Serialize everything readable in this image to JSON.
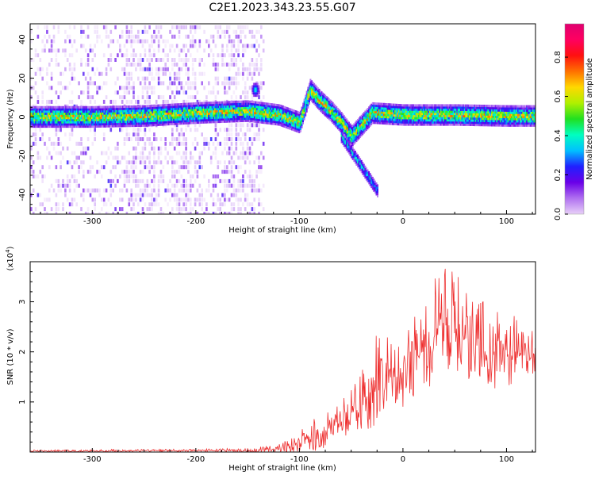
{
  "title": "C2E1.2023.343.23.55.G07",
  "chart_data": [
    {
      "type": "heatmap",
      "xlabel": "Height of straight line (km)",
      "ylabel": "Frequency (Hz)",
      "xlim": [
        -360,
        128
      ],
      "ylim": [
        -50,
        48
      ],
      "x_ticks": [
        -300,
        -200,
        -100,
        0,
        100
      ],
      "y_ticks": [
        -40,
        -20,
        0,
        20,
        40
      ],
      "colorbar": {
        "label": "Normalized spectral amplitude",
        "range": [
          0.0,
          0.97
        ],
        "ticks": [
          "0.0",
          "0.2",
          "0.4",
          "0.6",
          "0.8"
        ],
        "colormap": [
          "#e8d0f8",
          "#b070f0",
          "#6a00e8",
          "#2020ff",
          "#00c0ff",
          "#00ffc0",
          "#20e020",
          "#b0f000",
          "#ffd800",
          "#ff7000",
          "#ff1010",
          "#ff0060",
          "#e00070"
        ]
      },
      "ridge": [
        {
          "x": -360,
          "y": 0
        },
        {
          "x": -300,
          "y": 0
        },
        {
          "x": -250,
          "y": 0.5
        },
        {
          "x": -200,
          "y": 2
        },
        {
          "x": -150,
          "y": 3
        },
        {
          "x": -120,
          "y": 1
        },
        {
          "x": -100,
          "y": -3
        },
        {
          "x": -90,
          "y": 14
        },
        {
          "x": -80,
          "y": 8
        },
        {
          "x": -70,
          "y": 3
        },
        {
          "x": -60,
          "y": -3
        },
        {
          "x": -50,
          "y": -10
        },
        {
          "x": -40,
          "y": -4
        },
        {
          "x": -30,
          "y": 2
        },
        {
          "x": 0,
          "y": 1
        },
        {
          "x": 50,
          "y": 1
        },
        {
          "x": 100,
          "y": 0.5
        },
        {
          "x": 128,
          "y": 0.5
        }
      ],
      "noise_region_x": [
        -360,
        -135
      ]
    },
    {
      "type": "line",
      "xlabel": "Height of straight line (km)",
      "ylabel": "SNR (10 * v/v)",
      "y_multiplier": "(x10^4)",
      "xlim": [
        -360,
        128
      ],
      "ylim": [
        0,
        3.8
      ],
      "x_ticks": [
        -300,
        -200,
        -100,
        0,
        100
      ],
      "y_ticks": [
        1,
        2,
        3
      ],
      "color": "#ee3030",
      "series": [
        {
          "x": [
            -360,
            -300,
            -200,
            -150,
            -120,
            -100,
            -80,
            -60,
            -40,
            -30,
            -20,
            -10,
            0,
            10,
            20,
            30,
            40,
            50,
            60,
            70,
            80,
            90,
            100,
            110,
            120,
            128
          ],
          "y": [
            0.02,
            0.02,
            0.03,
            0.03,
            0.05,
            0.2,
            0.35,
            0.6,
            0.9,
            1.2,
            1.4,
            1.5,
            1.6,
            1.8,
            2.0,
            2.3,
            2.5,
            2.3,
            2.2,
            2.1,
            2.0,
            1.9,
            1.9,
            2.0,
            1.9,
            2.0
          ],
          "y_max": [
            0.04,
            0.05,
            0.06,
            0.08,
            0.15,
            0.45,
            0.75,
            1.0,
            1.6,
            2.2,
            2.5,
            2.4,
            2.5,
            2.7,
            3.0,
            3.5,
            3.8,
            3.7,
            3.3,
            3.1,
            3.0,
            2.9,
            2.8,
            2.7,
            2.6,
            2.6
          ]
        }
      ]
    }
  ]
}
